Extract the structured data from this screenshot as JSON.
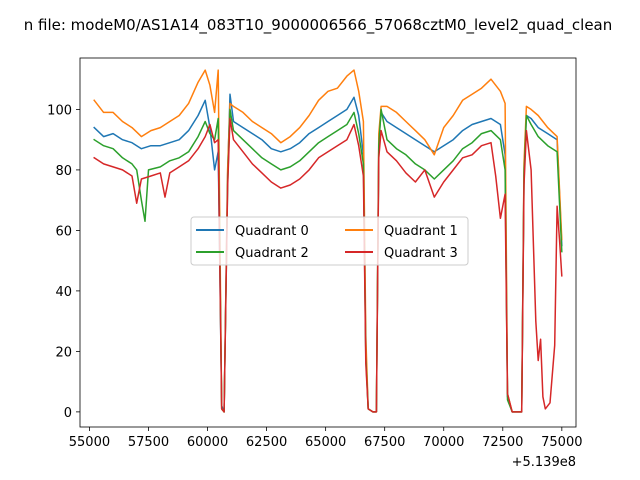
{
  "chart_data": {
    "type": "line",
    "title": "n file: modeM0/AS1A14_083T10_9000006566_57068cztM0_level2_quad_clean",
    "xlabel": "",
    "ylabel": "",
    "x_offset_label": "+5.139e8",
    "xlim": [
      54600,
      75600
    ],
    "ylim": [
      -5,
      117
    ],
    "xticks": [
      55000,
      57500,
      60000,
      62500,
      65000,
      67500,
      70000,
      72500,
      75000
    ],
    "yticks": [
      0,
      20,
      40,
      60,
      80,
      100
    ],
    "legend": {
      "placement": "center",
      "columns": 2
    },
    "series": [
      {
        "name": "Quadrant 0",
        "color": "#1f77b4",
        "points": [
          [
            55200,
            94
          ],
          [
            55600,
            91
          ],
          [
            56000,
            92
          ],
          [
            56400,
            90
          ],
          [
            56800,
            89
          ],
          [
            57200,
            87
          ],
          [
            57600,
            88
          ],
          [
            58000,
            88
          ],
          [
            58400,
            89
          ],
          [
            58800,
            90
          ],
          [
            59200,
            93
          ],
          [
            59600,
            98
          ],
          [
            59900,
            103
          ],
          [
            60100,
            94
          ],
          [
            60300,
            80
          ],
          [
            60450,
            86
          ],
          [
            60600,
            2
          ],
          [
            60700,
            0
          ],
          [
            60850,
            78
          ],
          [
            60950,
            105
          ],
          [
            61100,
            96
          ],
          [
            61500,
            94
          ],
          [
            61900,
            92
          ],
          [
            62300,
            90
          ],
          [
            62700,
            87
          ],
          [
            63100,
            86
          ],
          [
            63500,
            87
          ],
          [
            63900,
            89
          ],
          [
            64300,
            92
          ],
          [
            64700,
            94
          ],
          [
            65100,
            96
          ],
          [
            65500,
            98
          ],
          [
            65900,
            100
          ],
          [
            66200,
            104
          ],
          [
            66400,
            98
          ],
          [
            66600,
            85
          ],
          [
            66700,
            20
          ],
          [
            66800,
            1
          ],
          [
            67000,
            0
          ],
          [
            67150,
            0
          ],
          [
            67250,
            90
          ],
          [
            67350,
            99
          ],
          [
            67600,
            96
          ],
          [
            68000,
            94
          ],
          [
            68400,
            92
          ],
          [
            68800,
            90
          ],
          [
            69200,
            88
          ],
          [
            69600,
            86
          ],
          [
            70000,
            88
          ],
          [
            70400,
            90
          ],
          [
            70800,
            93
          ],
          [
            71200,
            95
          ],
          [
            71600,
            96
          ],
          [
            72000,
            97
          ],
          [
            72400,
            95
          ],
          [
            72600,
            85
          ],
          [
            72700,
            5
          ],
          [
            72900,
            0
          ],
          [
            73300,
            0
          ],
          [
            73400,
            80
          ],
          [
            73500,
            98
          ],
          [
            73700,
            97
          ],
          [
            74000,
            94
          ],
          [
            74400,
            92
          ],
          [
            74800,
            90
          ],
          [
            75000,
            55
          ]
        ]
      },
      {
        "name": "Quadrant 1",
        "color": "#ff7f0e",
        "points": [
          [
            55200,
            103
          ],
          [
            55600,
            99
          ],
          [
            56000,
            99
          ],
          [
            56400,
            96
          ],
          [
            56800,
            94
          ],
          [
            57200,
            91
          ],
          [
            57600,
            93
          ],
          [
            58000,
            94
          ],
          [
            58400,
            96
          ],
          [
            58800,
            98
          ],
          [
            59200,
            102
          ],
          [
            59600,
            109
          ],
          [
            59900,
            113
          ],
          [
            60100,
            108
          ],
          [
            60300,
            99
          ],
          [
            60450,
            113
          ],
          [
            60600,
            1
          ],
          [
            60700,
            0
          ],
          [
            60850,
            80
          ],
          [
            60950,
            102
          ],
          [
            61100,
            101
          ],
          [
            61500,
            99
          ],
          [
            61900,
            96
          ],
          [
            62300,
            94
          ],
          [
            62700,
            92
          ],
          [
            63100,
            89
          ],
          [
            63500,
            91
          ],
          [
            63900,
            94
          ],
          [
            64300,
            98
          ],
          [
            64700,
            103
          ],
          [
            65100,
            106
          ],
          [
            65500,
            107
          ],
          [
            65900,
            111
          ],
          [
            66200,
            113
          ],
          [
            66400,
            106
          ],
          [
            66600,
            96
          ],
          [
            66700,
            25
          ],
          [
            66800,
            1
          ],
          [
            67000,
            0
          ],
          [
            67150,
            0
          ],
          [
            67250,
            92
          ],
          [
            67350,
            101
          ],
          [
            67600,
            101
          ],
          [
            68000,
            99
          ],
          [
            68400,
            96
          ],
          [
            68800,
            93
          ],
          [
            69200,
            90
          ],
          [
            69600,
            85
          ],
          [
            70000,
            94
          ],
          [
            70400,
            98
          ],
          [
            70800,
            103
          ],
          [
            71200,
            105
          ],
          [
            71600,
            107
          ],
          [
            72000,
            110
          ],
          [
            72400,
            106
          ],
          [
            72600,
            102
          ],
          [
            72700,
            6
          ],
          [
            72900,
            0
          ],
          [
            73300,
            0
          ],
          [
            73400,
            82
          ],
          [
            73500,
            101
          ],
          [
            73700,
            100
          ],
          [
            74000,
            98
          ],
          [
            74400,
            94
          ],
          [
            74800,
            91
          ],
          [
            75000,
            57
          ]
        ]
      },
      {
        "name": "Quadrant 2",
        "color": "#2ca02c",
        "points": [
          [
            55200,
            90
          ],
          [
            55600,
            88
          ],
          [
            56000,
            87
          ],
          [
            56400,
            84
          ],
          [
            56800,
            82
          ],
          [
            57000,
            80
          ],
          [
            57200,
            70
          ],
          [
            57350,
            63
          ],
          [
            57500,
            80
          ],
          [
            58000,
            81
          ],
          [
            58400,
            83
          ],
          [
            58800,
            84
          ],
          [
            59200,
            86
          ],
          [
            59600,
            91
          ],
          [
            59900,
            96
          ],
          [
            60100,
            92
          ],
          [
            60300,
            90
          ],
          [
            60450,
            97
          ],
          [
            60600,
            1
          ],
          [
            60700,
            0
          ],
          [
            60850,
            75
          ],
          [
            60950,
            100
          ],
          [
            61100,
            93
          ],
          [
            61500,
            90
          ],
          [
            61900,
            87
          ],
          [
            62300,
            84
          ],
          [
            62700,
            82
          ],
          [
            63100,
            80
          ],
          [
            63500,
            81
          ],
          [
            63900,
            83
          ],
          [
            64300,
            86
          ],
          [
            64700,
            89
          ],
          [
            65100,
            91
          ],
          [
            65500,
            93
          ],
          [
            65900,
            95
          ],
          [
            66200,
            99
          ],
          [
            66400,
            92
          ],
          [
            66600,
            82
          ],
          [
            66700,
            18
          ],
          [
            66800,
            1
          ],
          [
            67000,
            0
          ],
          [
            67150,
            0
          ],
          [
            67250,
            88
          ],
          [
            67350,
            100
          ],
          [
            67600,
            90
          ],
          [
            68000,
            87
          ],
          [
            68400,
            85
          ],
          [
            68800,
            82
          ],
          [
            69200,
            80
          ],
          [
            69600,
            77
          ],
          [
            70000,
            80
          ],
          [
            70400,
            83
          ],
          [
            70800,
            87
          ],
          [
            71200,
            89
          ],
          [
            71600,
            92
          ],
          [
            72000,
            93
          ],
          [
            72400,
            90
          ],
          [
            72600,
            80
          ],
          [
            72700,
            4
          ],
          [
            72900,
            0
          ],
          [
            73300,
            0
          ],
          [
            73400,
            78
          ],
          [
            73500,
            98
          ],
          [
            73700,
            95
          ],
          [
            74000,
            91
          ],
          [
            74400,
            88
          ],
          [
            74800,
            86
          ],
          [
            75000,
            53
          ]
        ]
      },
      {
        "name": "Quadrant 3",
        "color": "#d62728",
        "points": [
          [
            55200,
            84
          ],
          [
            55600,
            82
          ],
          [
            56000,
            81
          ],
          [
            56400,
            80
          ],
          [
            56800,
            78
          ],
          [
            57000,
            69
          ],
          [
            57200,
            77
          ],
          [
            57600,
            78
          ],
          [
            58000,
            79
          ],
          [
            58200,
            71
          ],
          [
            58400,
            79
          ],
          [
            58800,
            81
          ],
          [
            59200,
            83
          ],
          [
            59600,
            87
          ],
          [
            59900,
            91
          ],
          [
            60100,
            95
          ],
          [
            60300,
            89
          ],
          [
            60450,
            90
          ],
          [
            60600,
            1
          ],
          [
            60700,
            0
          ],
          [
            60850,
            74
          ],
          [
            60950,
            97
          ],
          [
            61100,
            90
          ],
          [
            61500,
            86
          ],
          [
            61900,
            82
          ],
          [
            62300,
            79
          ],
          [
            62700,
            76
          ],
          [
            63100,
            74
          ],
          [
            63500,
            75
          ],
          [
            63900,
            77
          ],
          [
            64300,
            80
          ],
          [
            64700,
            84
          ],
          [
            65100,
            86
          ],
          [
            65500,
            88
          ],
          [
            65900,
            90
          ],
          [
            66200,
            95
          ],
          [
            66400,
            88
          ],
          [
            66600,
            78
          ],
          [
            66700,
            16
          ],
          [
            66800,
            1
          ],
          [
            67000,
            0
          ],
          [
            67150,
            0
          ],
          [
            67250,
            84
          ],
          [
            67350,
            93
          ],
          [
            67600,
            86
          ],
          [
            68000,
            83
          ],
          [
            68400,
            79
          ],
          [
            68800,
            76
          ],
          [
            69200,
            80
          ],
          [
            69600,
            71
          ],
          [
            70000,
            76
          ],
          [
            70400,
            80
          ],
          [
            70800,
            84
          ],
          [
            71200,
            85
          ],
          [
            71600,
            88
          ],
          [
            72000,
            89
          ],
          [
            72200,
            78
          ],
          [
            72400,
            64
          ],
          [
            72600,
            72
          ],
          [
            72700,
            6
          ],
          [
            72900,
            0
          ],
          [
            73300,
            0
          ],
          [
            73400,
            75
          ],
          [
            73500,
            93
          ],
          [
            73700,
            80
          ],
          [
            73900,
            30
          ],
          [
            74000,
            17
          ],
          [
            74100,
            24
          ],
          [
            74200,
            5
          ],
          [
            74300,
            1
          ],
          [
            74500,
            3
          ],
          [
            74700,
            22
          ],
          [
            74800,
            68
          ],
          [
            74900,
            57
          ],
          [
            75000,
            45
          ]
        ]
      }
    ]
  }
}
